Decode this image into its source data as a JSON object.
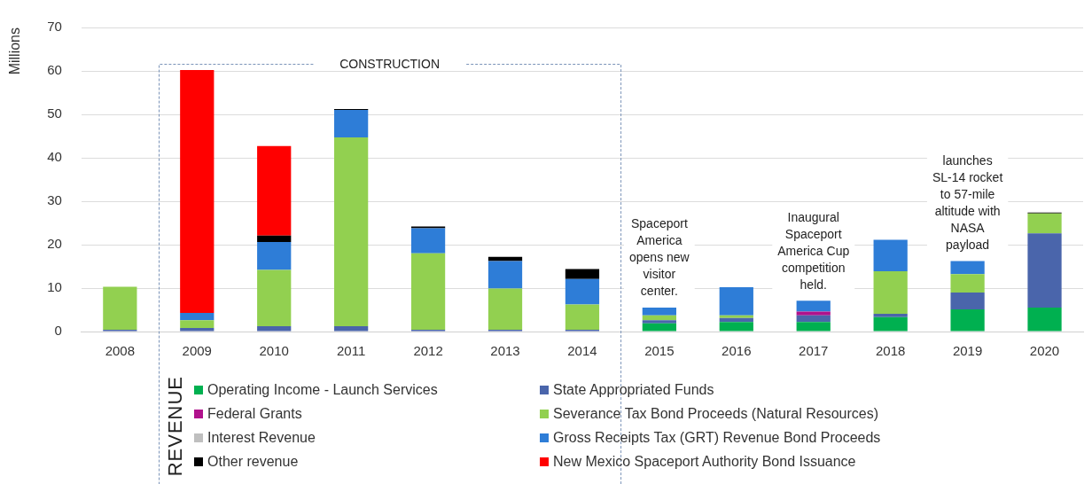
{
  "chart_data": {
    "type": "bar",
    "stacked": true,
    "ylabel": "Millions",
    "legend_title": "REVENUE",
    "legend": "bottom",
    "grid": "y",
    "categories": [
      "2008",
      "2009",
      "2010",
      "2011",
      "2012",
      "2013",
      "2014",
      "2015",
      "2016",
      "2017",
      "2018",
      "2019",
      "2020"
    ],
    "ylim": [
      0,
      70
    ],
    "yticks": [
      0,
      10,
      20,
      30,
      40,
      50,
      60,
      70
    ],
    "series": [
      {
        "name": "Operating Income - Launch Services",
        "color": "#00b050",
        "values": [
          0,
          0,
          0,
          0,
          0,
          0,
          0,
          1.9,
          2.2,
          2.2,
          3.3,
          5.1,
          5.5
        ]
      },
      {
        "name": "State Appropriated Funds",
        "color": "#4a65ab",
        "values": [
          0.4,
          0.8,
          1.2,
          1.2,
          0.4,
          0.4,
          0.4,
          0.7,
          0.9,
          1.5,
          0.8,
          3.9,
          17.1
        ]
      },
      {
        "name": "Federal Grants",
        "color": "#b0128c",
        "values": [
          0,
          0,
          0,
          0,
          0,
          0,
          0,
          0,
          0,
          0.9,
          0,
          0,
          0
        ]
      },
      {
        "name": "Severance Tax Bond Proceeds (Natural Resources)",
        "color": "#92d050",
        "values": [
          9.9,
          1.8,
          13,
          43.5,
          17.6,
          9.5,
          5.8,
          1.1,
          0.6,
          0,
          9.8,
          4.2,
          4.6
        ]
      },
      {
        "name": "Interest Revenue",
        "color": "#bfbfbf",
        "values": [
          0,
          0,
          0,
          0,
          0,
          0,
          0,
          0,
          0,
          0,
          0,
          0,
          0
        ]
      },
      {
        "name": "Gross Receipts Tax (GRT) Revenue Bond Proceeds",
        "color": "#2e7dd7",
        "values": [
          0,
          1.7,
          6.4,
          6.3,
          5.8,
          6.3,
          5.9,
          1.8,
          6.5,
          2.5,
          7.2,
          3,
          0
        ]
      },
      {
        "name": "Other revenue",
        "color": "#000000",
        "values": [
          0,
          0,
          1.5,
          0.2,
          0.4,
          1,
          2.3,
          0,
          0,
          0,
          0,
          0,
          0.2
        ]
      },
      {
        "name": "New Mexico Spaceport Authority Bond Issuance",
        "color": "#ff0000",
        "values": [
          0,
          55.9,
          20.6,
          0,
          0,
          0,
          0,
          0,
          0,
          0,
          0,
          0,
          0
        ]
      }
    ],
    "annotations": [
      "CONSTRUCTION",
      "Spaceport America opens new visitor center.",
      "Inaugural Spaceport America Cup competition held.",
      "launches SL-14 rocket to 57-mile altitude with NASA payload"
    ]
  }
}
